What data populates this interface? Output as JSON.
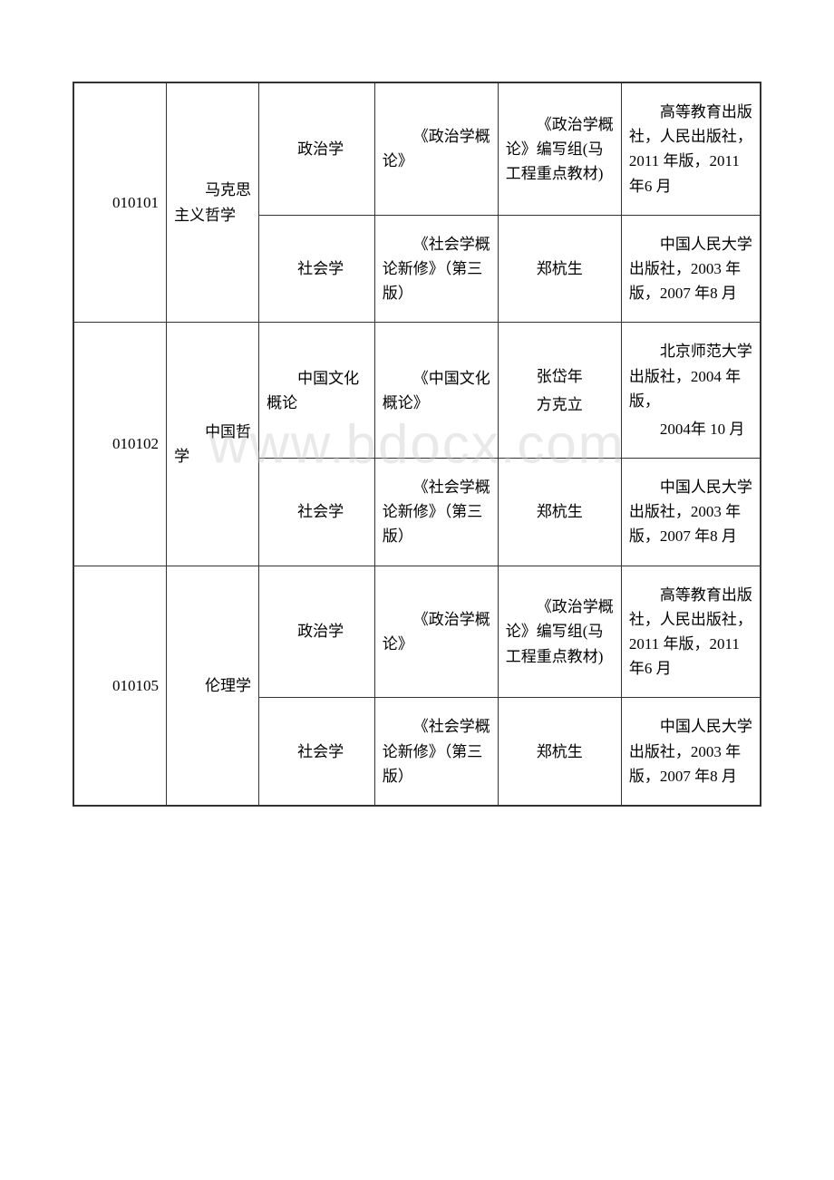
{
  "watermark": "www.bdocx.com",
  "rows": [
    {
      "code": "010101",
      "major": "马克思主义哲学",
      "subjects": [
        {
          "subject": "政治学",
          "book": "《政治学概论》",
          "author": "《政治学概论》编写组(马工程重点教材)",
          "publisher": "高等教育出版社，人民出版社，2011 年版，2011 年6 月"
        },
        {
          "subject": "社会学",
          "book": "《社会学概论新修》（第三版）",
          "author": "郑杭生",
          "publisher": "中国人民大学出版社，2003 年版，2007 年8 月"
        }
      ]
    },
    {
      "code": "010102",
      "major": "中国哲学",
      "subjects": [
        {
          "subject": "中国文化概论",
          "book": "《中国文化概论》",
          "authors": [
            "张岱年",
            "方克立"
          ],
          "publisher_lines": [
            "北京师范大学出版社，2004 年版，",
            "2004年 10 月"
          ]
        },
        {
          "subject": "社会学",
          "book": "《社会学概论新修》（第三版）",
          "author": "郑杭生",
          "publisher": "中国人民大学出版社，2003 年版，2007 年8 月"
        }
      ]
    },
    {
      "code": "010105",
      "major": "伦理学",
      "subjects": [
        {
          "subject": "政治学",
          "book": "《政治学概论》",
          "author": "《政治学概论》编写组(马工程重点教材)",
          "publisher": "高等教育出版社，人民出版社，2011 年版，2011 年6 月"
        },
        {
          "subject": "社会学",
          "book": "《社会学概论新修》（第三版）",
          "author": "郑杭生",
          "publisher": "中国人民大学出版社，2003 年版，2007 年8 月"
        }
      ]
    }
  ]
}
